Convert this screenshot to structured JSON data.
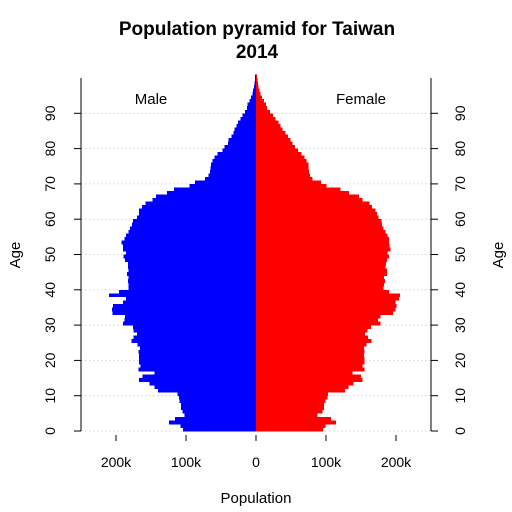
{
  "chart_data": {
    "type": "bar",
    "orientation": "horizontal",
    "title": "Population pyramid for Taiwan",
    "subtitle": "2014",
    "xlabel": "Population",
    "ylabel": "Age",
    "xlim": [
      -250000,
      250000
    ],
    "ylim": [
      0,
      100
    ],
    "x_ticks": [
      {
        "value": -200000,
        "label": "200k"
      },
      {
        "value": -100000,
        "label": "100k"
      },
      {
        "value": 0,
        "label": "0"
      },
      {
        "value": 100000,
        "label": "100k"
      },
      {
        "value": 200000,
        "label": "200k"
      }
    ],
    "y_ticks": [
      0,
      10,
      20,
      30,
      40,
      50,
      60,
      70,
      80,
      90
    ],
    "grid": "dotted horizontal lines at every 10 years",
    "series": [
      {
        "name": "Male",
        "color": "#0000ff",
        "ages": "0-100",
        "values": [
          104000,
          108000,
          124000,
          116000,
          102000,
          105000,
          107000,
          107000,
          109000,
          110000,
          112000,
          140000,
          145000,
          152000,
          167000,
          162000,
          145000,
          168000,
          165000,
          167000,
          167000,
          167000,
          168000,
          166000,
          169000,
          178000,
          175000,
          170000,
          175000,
          176000,
          190000,
          188000,
          187000,
          205000,
          206000,
          204000,
          190000,
          186000,
          210000,
          196000,
          182000,
          182000,
          183000,
          182000,
          184000,
          182000,
          183000,
          183000,
          187000,
          189000,
          186000,
          190000,
          190000,
          192000,
          188000,
          186000,
          182000,
          180000,
          177000,
          176000,
          170000,
          167000,
          167000,
          163000,
          158000,
          148000,
          143000,
          127000,
          117000,
          95000,
          87000,
          73000,
          68000,
          66000,
          65000,
          64000,
          62000,
          59000,
          55000,
          48000,
          45000,
          40000,
          39000,
          35000,
          32000,
          31000,
          28000,
          26000,
          22000,
          19000,
          16000,
          13000,
          12000,
          9500,
          7000,
          5000,
          4000,
          3000,
          2200,
          1600,
          1100
        ]
      },
      {
        "name": "Female",
        "color": "#ff0000",
        "ages": "0-100",
        "values": [
          96000,
          99000,
          114000,
          107000,
          88000,
          95000,
          97000,
          97000,
          99000,
          102000,
          103000,
          127000,
          132000,
          139000,
          152000,
          150000,
          138000,
          155000,
          152000,
          155000,
          155000,
          154000,
          155000,
          154000,
          158000,
          165000,
          160000,
          156000,
          159000,
          164000,
          178000,
          174000,
          178000,
          196000,
          199000,
          201000,
          199000,
          204000,
          206000,
          190000,
          182000,
          183000,
          184000,
          183000,
          187000,
          187000,
          185000,
          186000,
          187000,
          190000,
          188000,
          192000,
          191000,
          190000,
          190000,
          188000,
          185000,
          182000,
          180000,
          179000,
          175000,
          173000,
          171000,
          166000,
          162000,
          152000,
          147000,
          133000,
          121000,
          101000,
          93000,
          81000,
          77000,
          76000,
          75000,
          75000,
          72000,
          69000,
          65000,
          60000,
          56000,
          52000,
          49000,
          46000,
          42000,
          38000,
          35000,
          32000,
          28000,
          24000,
          20000,
          16000,
          14000,
          11500,
          8500,
          6500,
          5000,
          3800,
          2800,
          2000,
          1400
        ]
      }
    ],
    "annotations": [
      {
        "text": "Male",
        "side": "left"
      },
      {
        "text": "Female",
        "side": "right"
      }
    ]
  }
}
